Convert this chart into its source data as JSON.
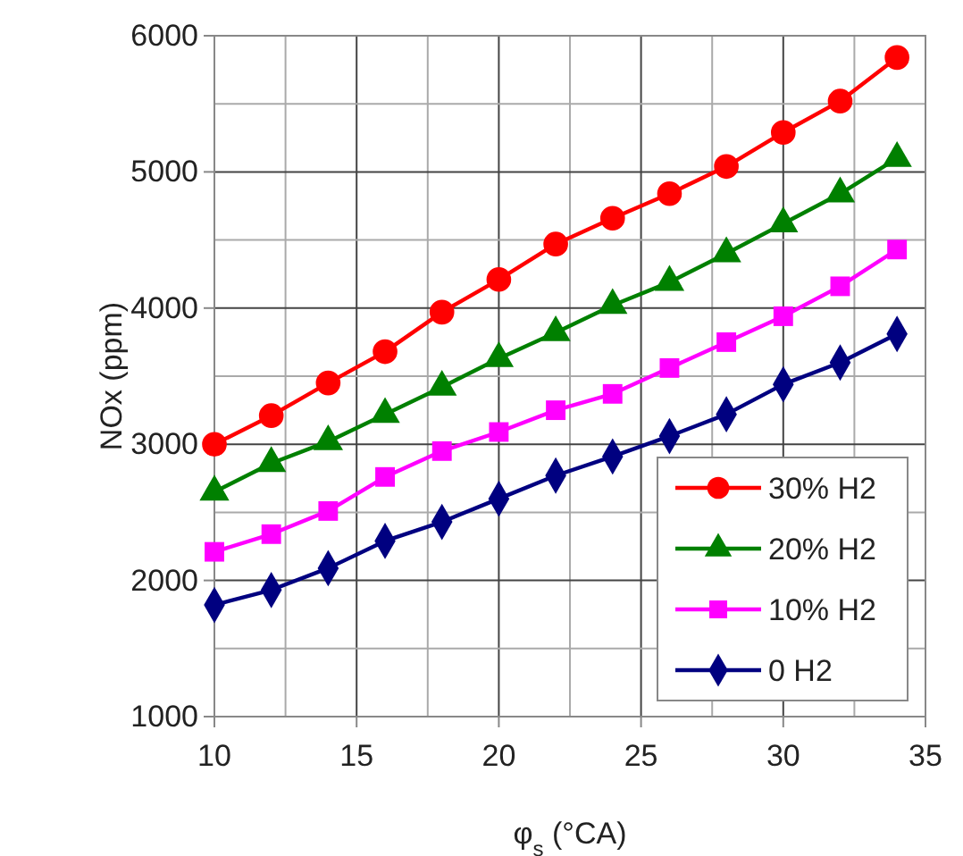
{
  "chart_data": {
    "type": "line",
    "xlabel": "φ$_{s}$ (°CA)",
    "ylabel": "NOx (ppm)",
    "x": [
      10,
      12,
      14,
      16,
      18,
      20,
      22,
      24,
      26,
      28,
      30,
      32,
      34
    ],
    "xlim": [
      10,
      35
    ],
    "xticks": [
      10,
      15,
      20,
      25,
      30,
      35
    ],
    "ylim": [
      1000,
      6000
    ],
    "yticks": [
      1000,
      2000,
      3000,
      4000,
      5000,
      6000
    ],
    "grid": true,
    "legend": "bottom right",
    "line_style": "solid",
    "series": [
      {
        "name": "30% H2",
        "color": "#ff0000",
        "marker": "circle",
        "values": [
          3000,
          3210,
          3450,
          3680,
          3970,
          4210,
          4470,
          4660,
          4840,
          5040,
          5290,
          5520,
          5840
        ]
      },
      {
        "name": "20% H2",
        "color": "#008000",
        "marker": "triangle",
        "values": [
          2650,
          2860,
          3020,
          3220,
          3420,
          3630,
          3820,
          4020,
          4190,
          4400,
          4620,
          4840,
          5100
        ]
      },
      {
        "name": "10% H2",
        "color": "#ff00ff",
        "marker": "square",
        "values": [
          2210,
          2340,
          2510,
          2760,
          2950,
          3090,
          3250,
          3370,
          3560,
          3750,
          3940,
          4160,
          4430
        ]
      },
      {
        "name": "0 H2",
        "color": "#000080",
        "marker": "diamond",
        "values": [
          1820,
          1930,
          2090,
          2290,
          2430,
          2600,
          2770,
          2910,
          3060,
          3220,
          3440,
          3600,
          3810
        ]
      }
    ]
  }
}
